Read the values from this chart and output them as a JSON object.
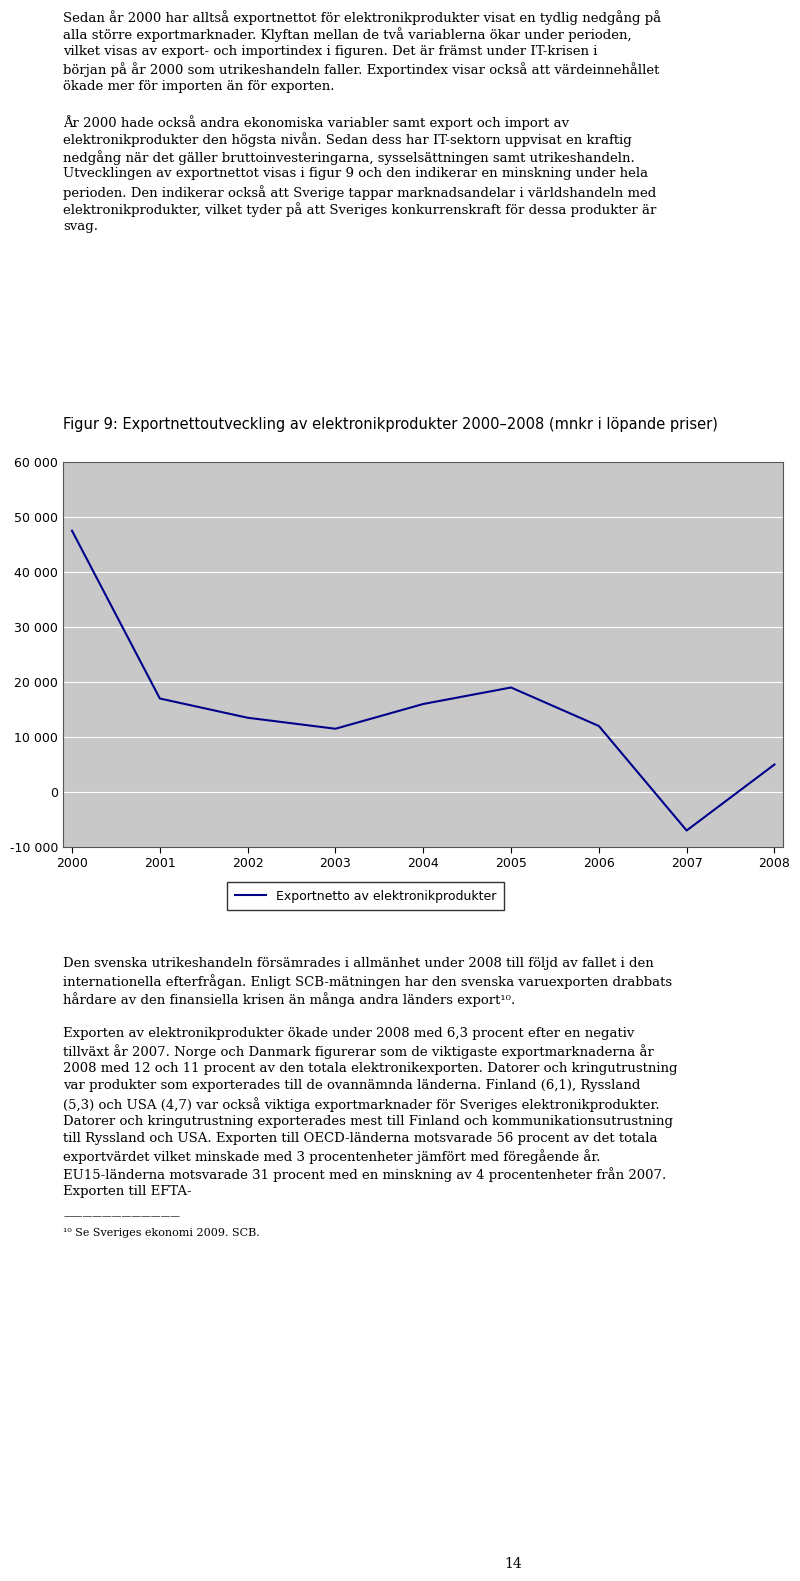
{
  "title": "Figur 9: Exportnettoutveckling av elektronikprodukter 2000–2008 (mnkr i löpande priser)",
  "x_values": [
    2000,
    2001,
    2002,
    2003,
    2004,
    2005,
    2006,
    2007,
    2008
  ],
  "y_values": [
    47500,
    17000,
    13500,
    11500,
    16000,
    19000,
    12000,
    -7000,
    5000
  ],
  "line_color": "#00008B",
  "plot_bg_color": "#C8C8C8",
  "ylim": [
    -10000,
    60000
  ],
  "yticks": [
    -10000,
    0,
    10000,
    20000,
    30000,
    40000,
    50000,
    60000
  ],
  "ytick_labels": [
    "-10 000",
    "0",
    "10 000",
    "20 000",
    "30 000",
    "40 000",
    "50 000",
    "60 000"
  ],
  "xticks": [
    2000,
    2001,
    2002,
    2003,
    2004,
    2005,
    2006,
    2007,
    2008
  ],
  "legend_label": "Exportnetto av elektronikprodukter",
  "page_bg": "#FFFFFF",
  "title_fontsize": 10.5,
  "tick_fontsize": 9,
  "legend_fontsize": 9,
  "body_fontsize": 9.5,
  "top_paragraphs": [
    "Sedan år 2000 har alltså exportnettot för elektronikprodukter visat en tydlig nedgång på alla större exportmarknader. Klyftan mellan de två variablerna ökar under perioden, vilket visas av export- och importindex i figuren. Det är främst under IT-krisen i början på år 2000 som utrikeshandeln faller. Exportindex visar också att värdeinnehållet ökade mer för importen än för exporten.",
    "",
    "År 2000 hade också andra ekonomiska variabler samt export och import av elektronikprodukter den högsta nivån. Sedan dess har IT-sektorn uppvisat en kraftig nedgång när det gäller bruttoinvesteringarna, sysselsättningen samt utrikeshandeln. Utvecklingen av exportnettot visas i figur 9 och den indikerar en minskning under hela perioden. Den indikerar också att Sverige tappar marknadsandelar i världshandeln med elektronikprodukter, vilket tyder på att Sveriges konkurrenskraft för dessa produkter är svag."
  ],
  "bottom_paragraphs": [
    "Den svenska utrikeshandeln försämrades i allmänhet under 2008 till följd av fallet i den internationella efterfrågan. Enligt SCB-mätningen har den svenska varuexporten drabbats hårdare av den finansiella krisen än många andra länders export¹⁰.",
    "",
    "Exporten av elektronikprodukter ökade under 2008 med 6,3 procent efter en negativ tillväxt år 2007. Norge och Danmark figurerar som de viktigaste exportmarknaderna år 2008 med 12 och 11 procent av den totala elektronikexporten. Datorer och kringutrustning var produkter som exporterades till de ovannämnda länderna. Finland (6,1), Ryssland (5,3) och USA (4,7) var också viktiga exportmarknader för Sveriges elektronikprodukter. Datorer och kringutrustning exporterades mest till Finland och kommunikationsutrustning till Ryssland och USA. Exporten till OECD-länderna motsvarade 56 procent av det totala exportvärdet vilket minskade med 3 procentenheter jämfört med föregående år. EU15-länderna motsvarade 31 procent med en minskning av 4 procentenheter från 2007. Exporten till EFTA-"
  ],
  "footnote_text": "¹⁰ Se Sveriges ekonomi 2009. SCB.",
  "page_number": "14"
}
